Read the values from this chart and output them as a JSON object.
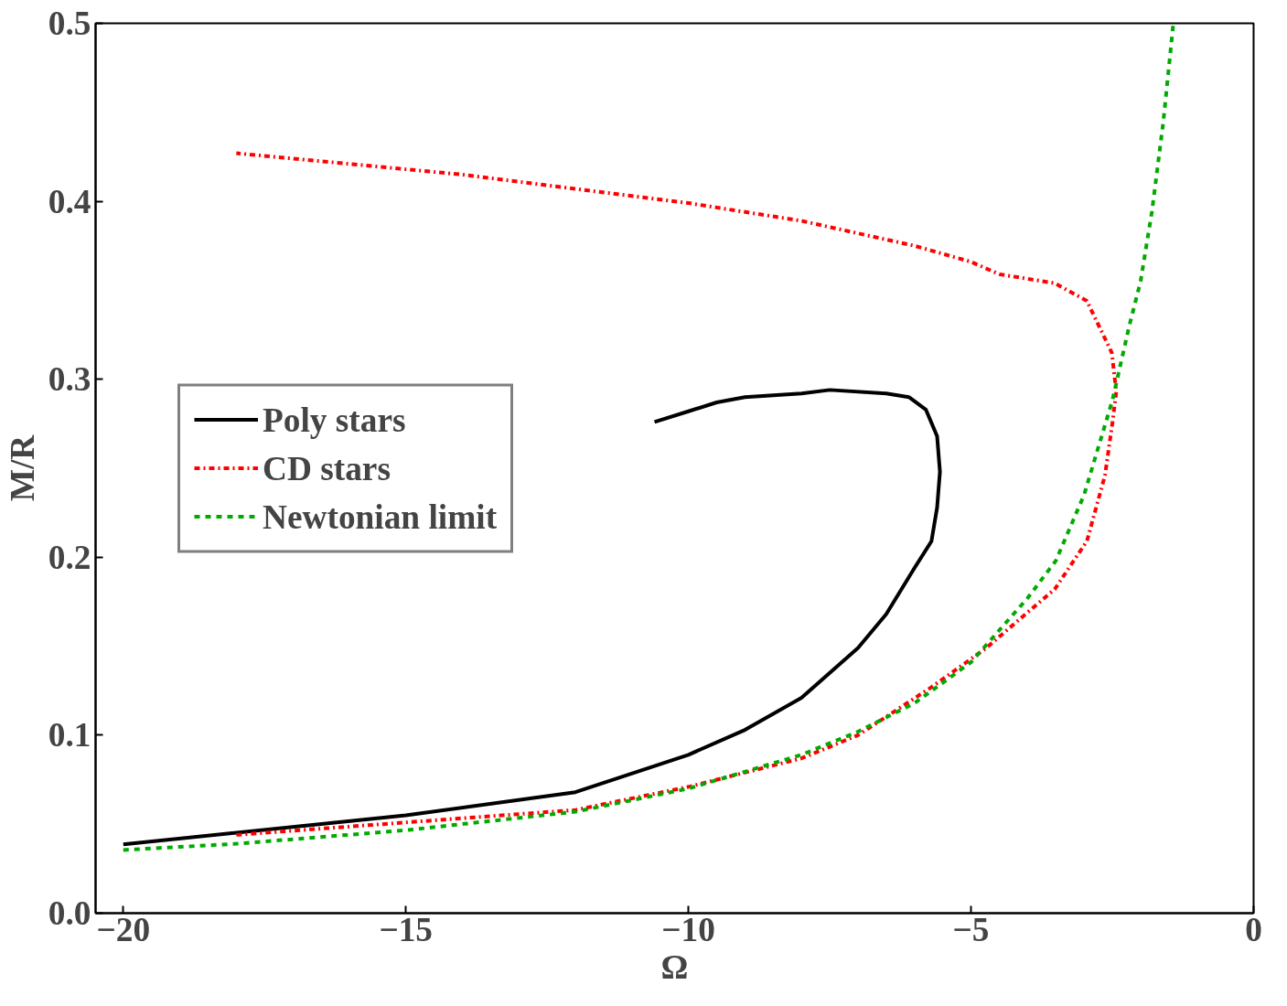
{
  "chart_data": {
    "type": "line",
    "xlabel": "Ω",
    "ylabel": "M/R",
    "xlim": [
      -20.49,
      0
    ],
    "ylim": [
      0,
      0.5
    ],
    "xticks": [
      {
        "value": -20,
        "label": "−20"
      },
      {
        "value": -15,
        "label": "−15"
      },
      {
        "value": -10,
        "label": "−10"
      },
      {
        "value": -5,
        "label": "−5"
      },
      0
    ],
    "yticks": [
      {
        "value": 0,
        "label": "0.0"
      },
      0.1,
      0.2,
      0.3,
      0.4,
      0.5
    ],
    "grid": false,
    "legend": "left",
    "series": [
      {
        "name": "Poly stars",
        "color": "#000000",
        "line_style": "solid",
        "x": [
          -20,
          -15,
          -12,
          -10,
          -9,
          -8,
          -7,
          -6.5,
          -6,
          -5.7,
          -5.6,
          -5.55,
          -5.6,
          -5.8,
          -6.1,
          -6.5,
          -7.5,
          -8,
          -9,
          -9.5,
          -10,
          -10.6
        ],
        "values": [
          0.0387,
          0.055,
          0.068,
          0.089,
          0.103,
          0.121,
          0.149,
          0.168,
          0.194,
          0.209,
          0.228,
          0.248,
          0.268,
          0.283,
          0.29,
          0.292,
          0.294,
          0.292,
          0.29,
          0.287,
          0.282,
          0.276
        ]
      },
      {
        "name": "CD stars",
        "color": "#ff0000",
        "line_style": "dashdot",
        "x": [
          -18,
          -15,
          -12,
          -10,
          -8,
          -7,
          -5.7,
          -4.73,
          -4,
          -3.52,
          -2.95,
          -2.63,
          -2.5,
          -2.43,
          -2.51,
          -2.95,
          -3.52,
          -4.5,
          -5,
          -6,
          -8,
          -10,
          -14,
          -18
        ],
        "values": [
          0.044,
          0.051,
          0.058,
          0.071,
          0.087,
          0.1,
          0.127,
          0.149,
          0.169,
          0.182,
          0.209,
          0.246,
          0.275,
          0.293,
          0.315,
          0.344,
          0.354,
          0.359,
          0.366,
          0.375,
          0.389,
          0.399,
          0.415,
          0.427
        ]
      },
      {
        "name": "Newtonian limit",
        "color": "#00aa00",
        "line_style": "dashed",
        "x": [
          -20,
          -18,
          -15,
          -12,
          -10,
          -8,
          -7,
          -6,
          -5,
          -4,
          -3.5,
          -3,
          -2.5,
          -2.2,
          -2,
          -1.8,
          -1.6,
          -1.42
        ],
        "values": [
          0.0355,
          0.039,
          0.0466,
          0.057,
          0.07,
          0.089,
          0.102,
          0.118,
          0.141,
          0.177,
          0.198,
          0.235,
          0.288,
          0.33,
          0.355,
          0.394,
          0.444,
          0.5
        ]
      }
    ]
  }
}
